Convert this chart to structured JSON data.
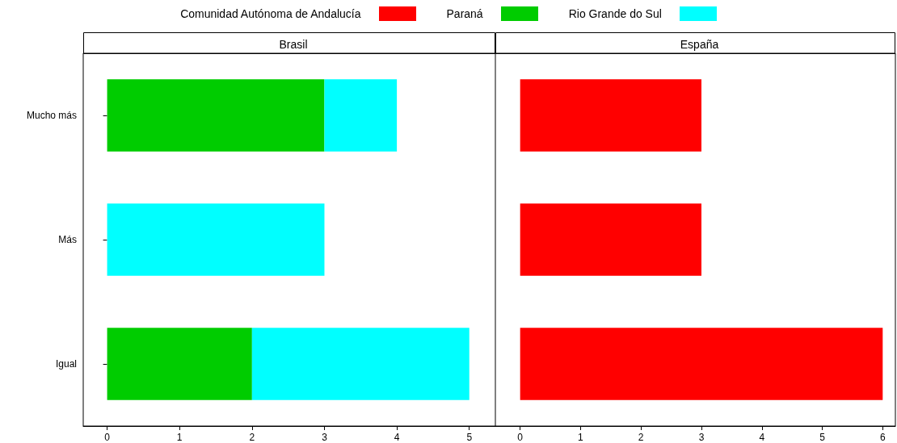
{
  "chart_data": [
    {
      "type": "bar",
      "orientation": "horizontal",
      "stacked": true,
      "title": "Brasil",
      "categories": [
        "Mucho más",
        "Más",
        "Igual"
      ],
      "xlim": [
        -0.33,
        5.36
      ],
      "xticks": [
        0,
        1,
        2,
        3,
        4,
        5
      ],
      "grid": false,
      "legend": "top",
      "series": [
        {
          "name": "Paraná",
          "color": "#00cc00",
          "values": [
            3,
            0,
            2
          ]
        },
        {
          "name": "Rio Grande do Sul",
          "color": "#00ffff",
          "values": [
            1,
            3,
            3
          ]
        }
      ]
    },
    {
      "type": "bar",
      "orientation": "horizontal",
      "stacked": true,
      "title": "España",
      "categories": [
        null,
        null,
        null
      ],
      "xlim": [
        -0.41,
        6.21
      ],
      "xticks": [
        0,
        1,
        2,
        3,
        4,
        5,
        6
      ],
      "grid": false,
      "legend": "top",
      "tick_labels": "x",
      "series": [
        {
          "name": "Comunidad Autónoma de Andalucía",
          "color": "#ff0000",
          "values": [
            3,
            3,
            6
          ]
        }
      ]
    }
  ]
}
